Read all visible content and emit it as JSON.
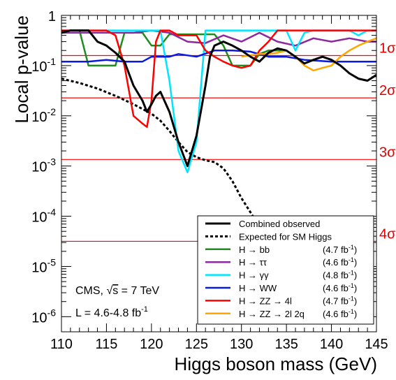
{
  "chart_data": {
    "type": "line",
    "xlabel": "Higgs boson mass (GeV)",
    "ylabel": "Local p-value",
    "xlim": [
      110,
      145
    ],
    "ylim": [
      5e-07,
      1
    ],
    "y_scale": "log",
    "x_ticks": [
      110,
      115,
      120,
      125,
      130,
      135,
      140,
      145
    ],
    "y_ticks": [
      {
        "value": 1e-06,
        "base": "10",
        "exp": "-6"
      },
      {
        "value": 1e-05,
        "base": "10",
        "exp": "-5"
      },
      {
        "value": 0.0001,
        "base": "10",
        "exp": "-4"
      },
      {
        "value": 0.001,
        "base": "10",
        "exp": "-3"
      },
      {
        "value": 0.01,
        "base": "10",
        "exp": "-2"
      },
      {
        "value": 0.1,
        "base": "10",
        "exp": "-1"
      },
      {
        "value": 1,
        "base": "1",
        "exp": ""
      }
    ],
    "sigma_lines": [
      {
        "label": "1σ",
        "p": 0.1587
      },
      {
        "label": "2σ",
        "p": 0.02275
      },
      {
        "label": "3σ",
        "p": 0.00135
      },
      {
        "label": "4σ",
        "p": 3.17e-05
      }
    ],
    "legend_position": "bottom-right",
    "series": [
      {
        "name": "Combined observed",
        "lumi": "",
        "color": "#000000",
        "style": "solid",
        "x": [
          110,
          111,
          112,
          113,
          114,
          115,
          116,
          117,
          118,
          119,
          119.5,
          120,
          120.5,
          121,
          122,
          123,
          124,
          125,
          126,
          126.5,
          127,
          128,
          129,
          130,
          131,
          132,
          133,
          134,
          135,
          136,
          137,
          138,
          139,
          140,
          141,
          142,
          143,
          144,
          145
        ],
        "y": [
          0.45,
          0.5,
          0.5,
          0.5,
          0.3,
          0.25,
          0.18,
          0.12,
          0.04,
          0.02,
          0.012,
          0.017,
          0.025,
          0.03,
          0.012,
          0.003,
          0.001,
          0.004,
          0.04,
          0.15,
          0.25,
          0.3,
          0.25,
          0.2,
          0.15,
          0.12,
          0.18,
          0.22,
          0.2,
          0.15,
          0.11,
          0.13,
          0.15,
          0.13,
          0.1,
          0.07,
          0.055,
          0.05,
          0.065
        ]
      },
      {
        "name": "Expected for SM Higgs",
        "lumi": "",
        "color": "#000000",
        "style": "dashed",
        "x": [
          110,
          112,
          114,
          116,
          118,
          120,
          121,
          122,
          123,
          124,
          125,
          126,
          127,
          128,
          129,
          130,
          131,
          132,
          133,
          134,
          135
        ],
        "y": [
          0.055,
          0.045,
          0.035,
          0.025,
          0.017,
          0.011,
          0.008,
          0.005,
          0.003,
          0.0019,
          0.0015,
          0.0013,
          0.0012,
          0.0009,
          0.0005,
          0.00023,
          0.00012,
          6e-05,
          3e-05,
          1.3e-05,
          5e-06
        ]
      },
      {
        "name": "H → bb",
        "lumi": "(4.7 fb",
        "color": "#1e8c1e",
        "style": "solid",
        "x": [
          110,
          111,
          112,
          113,
          116,
          117,
          118,
          119,
          120,
          121,
          122,
          127,
          128,
          129,
          130,
          131,
          132,
          133,
          135
        ],
        "y": [
          0.45,
          0.5,
          0.5,
          0.1,
          0.1,
          0.45,
          0.45,
          0.45,
          0.25,
          0.25,
          0.42,
          0.42,
          0.25,
          0.1,
          0.1,
          0.1,
          0.17,
          0.2,
          0.2
        ]
      },
      {
        "name": "H → ττ",
        "lumi": "(4.6 fb",
        "color": "#8b2a9e",
        "style": "solid",
        "x": [
          110,
          112,
          114,
          116,
          118,
          120,
          122,
          124,
          126,
          128,
          130,
          132,
          134,
          136,
          138,
          140,
          142,
          144,
          145
        ],
        "y": [
          0.45,
          0.45,
          0.45,
          0.45,
          0.45,
          0.5,
          0.45,
          0.3,
          0.28,
          0.4,
          0.3,
          0.45,
          0.3,
          0.25,
          0.35,
          0.3,
          0.35,
          0.3,
          0.3
        ]
      },
      {
        "name": "H → γγ",
        "lumi": "(4.8 fb",
        "color": "#00e5ff",
        "style": "solid",
        "x": [
          110,
          112,
          114,
          116,
          118,
          120,
          121,
          122,
          123,
          124,
          125,
          126,
          127,
          130,
          133,
          135,
          136,
          137,
          138,
          140,
          142,
          143,
          144,
          145
        ],
        "y": [
          0.5,
          0.5,
          0.5,
          0.5,
          0.5,
          0.5,
          0.5,
          0.05,
          0.002,
          0.00075,
          0.003,
          0.5,
          0.5,
          0.5,
          0.5,
          0.5,
          0.2,
          0.45,
          0.5,
          0.5,
          0.5,
          0.4,
          0.5,
          0.5
        ]
      },
      {
        "name": "H → WW",
        "lumi": "(4.6 fb",
        "color": "#0a1adf",
        "style": "solid",
        "x": [
          110,
          113,
          115,
          117,
          119,
          120,
          122,
          123,
          125,
          127,
          129,
          131,
          133,
          135,
          137,
          140,
          142,
          145
        ],
        "y": [
          0.12,
          0.12,
          0.13,
          0.12,
          0.12,
          0.15,
          0.15,
          0.17,
          0.15,
          0.2,
          0.2,
          0.19,
          0.15,
          0.15,
          0.13,
          0.12,
          0.12,
          0.12
        ]
      },
      {
        "name": "H → ZZ → 4l",
        "lumi": "(4.7 fb",
        "color": "#ff0000",
        "style": "solid",
        "x": [
          110,
          111,
          112,
          114,
          115,
          116,
          117,
          118,
          119,
          119.5,
          120,
          120.5,
          121,
          122,
          123,
          124,
          125,
          126,
          127,
          128,
          129,
          130,
          131,
          132,
          133,
          134,
          135,
          136,
          140,
          145
        ],
        "y": [
          0.5,
          0.5,
          0.5,
          0.5,
          0.5,
          0.4,
          0.1,
          0.01,
          0.007,
          0.006,
          0.02,
          0.3,
          0.5,
          0.5,
          0.4,
          0.4,
          0.4,
          0.2,
          0.15,
          0.12,
          0.1,
          0.09,
          0.1,
          0.2,
          0.3,
          0.5,
          0.5,
          0.5,
          0.5,
          0.5
        ]
      },
      {
        "name": "H → ZZ → 2l 2q",
        "lumi": "(4.6 fb",
        "color": "#ffa500",
        "style": "solid",
        "x": [
          130,
          131,
          132,
          133,
          134,
          135,
          136,
          137,
          138,
          139,
          140,
          141,
          142,
          143,
          144,
          145
        ],
        "y": [
          0.15,
          0.16,
          0.17,
          0.17,
          0.18,
          0.2,
          0.15,
          0.1,
          0.08,
          0.09,
          0.1,
          0.15,
          0.2,
          0.25,
          0.3,
          0.35
        ]
      }
    ]
  },
  "legend": {
    "lumi_sup": "-1",
    "lumi_close": ")"
  },
  "annotations": {
    "line1_prefix": "CMS, ",
    "line1_sqrt": "√",
    "line1_s": "s",
    "line1_suffix": " = 7 TeV",
    "line2_prefix": "L = 4.6-4.8 fb",
    "line2_sup": "-1"
  }
}
